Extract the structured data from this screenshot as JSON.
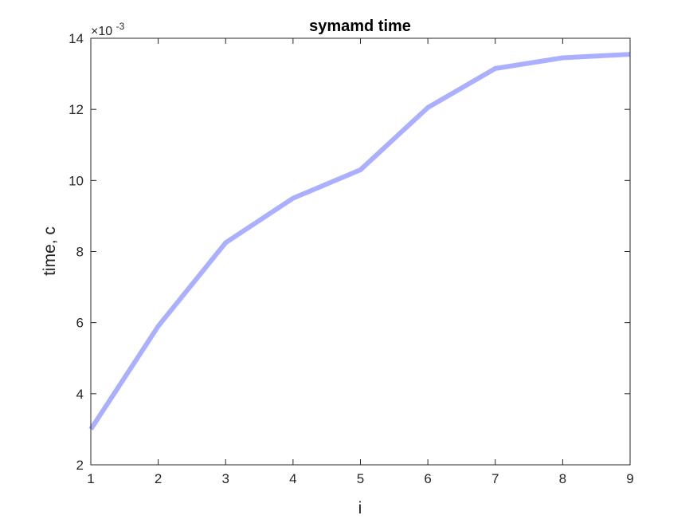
{
  "chart_data": {
    "type": "line",
    "title": "symamd time",
    "xlabel": "i",
    "ylabel": "time, c",
    "y_exponent": {
      "base": "×10",
      "power": "-3"
    },
    "xlim": [
      1,
      9
    ],
    "ylim": [
      2,
      14
    ],
    "xticks": [
      1,
      2,
      3,
      4,
      5,
      6,
      7,
      8,
      9
    ],
    "yticks": [
      2,
      4,
      6,
      8,
      10,
      12,
      14
    ],
    "grid": false,
    "series": [
      {
        "color": "#aab0ff",
        "x": [
          1,
          2,
          3,
          4,
          5,
          6,
          7,
          8,
          9
        ],
        "y": [
          3.0,
          5.9,
          8.25,
          9.5,
          10.3,
          12.05,
          13.15,
          13.45,
          13.55
        ]
      }
    ]
  }
}
